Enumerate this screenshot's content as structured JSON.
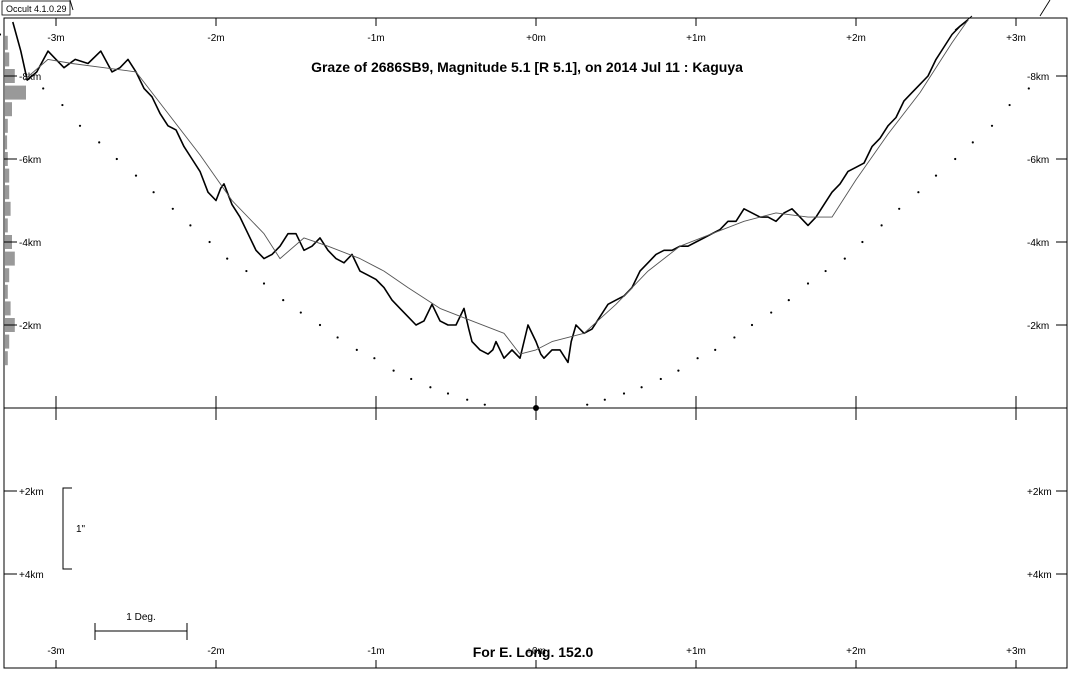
{
  "chart_data": {
    "type": "line",
    "title": "Graze of  2686SB9,  Magnitude 5.1 [R 5.1],  on 2014 Jul 11  :  Kaguya",
    "footer": "For E. Long. 152.0",
    "version_label": "Occult 4.1.0.29",
    "scale_bar_arcsec": "1\"",
    "scale_bar_deg": "1 Deg.",
    "x_ticks": [
      "-3m",
      "-2m",
      "-1m",
      "+0m",
      "+1m",
      "+2m",
      "+3m"
    ],
    "x_tick_values": [
      -3,
      -2,
      -1,
      0,
      1,
      2,
      3
    ],
    "y_ticks_left": [
      "-8km",
      "-6km",
      "-4km",
      "-2km",
      "+2km",
      "+4km"
    ],
    "y_ticks_right": [
      "-8km",
      "-6km",
      "-4km",
      "-2km",
      "+2km",
      "+4km"
    ],
    "y_tick_values": [
      -8,
      -6,
      -4,
      -2,
      2,
      4
    ],
    "x_unit": "minutes from central time",
    "y_unit": "km",
    "xlim": [
      -3.3,
      3.3
    ],
    "ylim": [
      -9.4,
      6.3
    ],
    "grid": false,
    "series": [
      {
        "role": "limb-profile-kaguya",
        "x": [
          -3.27,
          -3.22,
          -3.18,
          -3.12,
          -3.05,
          -3.0,
          -2.95,
          -2.88,
          -2.8,
          -2.72,
          -2.65,
          -2.6,
          -2.55,
          -2.5,
          -2.45,
          -2.4,
          -2.35,
          -2.3,
          -2.25,
          -2.2,
          -2.15,
          -2.1,
          -2.05,
          -2.0,
          -1.97,
          -1.95,
          -1.9,
          -1.85,
          -1.8,
          -1.75,
          -1.7,
          -1.65,
          -1.6,
          -1.55,
          -1.5,
          -1.45,
          -1.4,
          -1.35,
          -1.3,
          -1.25,
          -1.2,
          -1.15,
          -1.1,
          -1.05,
          -1.0,
          -0.95,
          -0.9,
          -0.85,
          -0.8,
          -0.75,
          -0.7,
          -0.65,
          -0.6,
          -0.55,
          -0.5,
          -0.45,
          -0.42,
          -0.4,
          -0.35,
          -0.3,
          -0.27,
          -0.25,
          -0.2,
          -0.15,
          -0.1,
          -0.05,
          0.0,
          0.03,
          0.05,
          0.1,
          0.15,
          0.2,
          0.22,
          0.25,
          0.3,
          0.35,
          0.4,
          0.45,
          0.5,
          0.55,
          0.6,
          0.65,
          0.7,
          0.75,
          0.8,
          0.85,
          0.9,
          0.95,
          1.0,
          1.05,
          1.1,
          1.15,
          1.2,
          1.25,
          1.3,
          1.35,
          1.4,
          1.45,
          1.5,
          1.55,
          1.6,
          1.65,
          1.7,
          1.75,
          1.8,
          1.85,
          1.9,
          1.95,
          2.0,
          2.05,
          2.1,
          2.15,
          2.2,
          2.25,
          2.3,
          2.35,
          2.4,
          2.45,
          2.5,
          2.55,
          2.6,
          2.65,
          2.7
        ],
        "y": [
          -9.3,
          -8.6,
          -7.9,
          -8.1,
          -8.6,
          -8.4,
          -8.2,
          -8.4,
          -8.3,
          -8.6,
          -8.1,
          -8.2,
          -8.4,
          -8.1,
          -7.7,
          -7.5,
          -7.1,
          -6.8,
          -6.7,
          -6.3,
          -6.0,
          -5.7,
          -5.2,
          -5.0,
          -5.3,
          -5.4,
          -4.9,
          -4.6,
          -4.2,
          -3.8,
          -3.6,
          -3.7,
          -3.9,
          -4.2,
          -4.2,
          -3.8,
          -3.9,
          -4.1,
          -3.8,
          -3.6,
          -3.5,
          -3.7,
          -3.3,
          -3.2,
          -3.1,
          -2.9,
          -2.6,
          -2.4,
          -2.2,
          -2.0,
          -2.1,
          -2.5,
          -2.1,
          -2.0,
          -2.0,
          -2.4,
          -1.9,
          -1.6,
          -1.4,
          -1.3,
          -1.4,
          -1.6,
          -1.2,
          -1.4,
          -1.2,
          -2.0,
          -1.6,
          -1.3,
          -1.2,
          -1.4,
          -1.4,
          -1.1,
          -1.6,
          -2.0,
          -1.8,
          -1.9,
          -2.2,
          -2.5,
          -2.6,
          -2.7,
          -2.9,
          -3.3,
          -3.5,
          -3.7,
          -3.8,
          -3.8,
          -3.9,
          -3.9,
          -4.0,
          -4.1,
          -4.2,
          -4.3,
          -4.5,
          -4.5,
          -4.8,
          -4.7,
          -4.6,
          -4.6,
          -4.5,
          -4.7,
          -4.8,
          -4.6,
          -4.4,
          -4.6,
          -4.9,
          -5.2,
          -5.4,
          -5.7,
          -5.8,
          -5.9,
          -6.3,
          -6.5,
          -6.8,
          -7.0,
          -7.4,
          -7.6,
          -7.8,
          -8.0,
          -8.4,
          -8.7,
          -9.0,
          -9.2,
          -9.35
        ],
        "color": "#000000"
      },
      {
        "role": "smoothed-profile",
        "x": [
          -3.2,
          -3.05,
          -2.9,
          -2.7,
          -2.5,
          -2.3,
          -2.1,
          -1.9,
          -1.7,
          -1.6,
          -1.45,
          -1.3,
          -1.1,
          -0.95,
          -0.8,
          -0.6,
          -0.4,
          -0.2,
          -0.1,
          0.0,
          0.1,
          0.3,
          0.5,
          0.7,
          0.9,
          1.1,
          1.3,
          1.5,
          1.7,
          1.85,
          2.0,
          2.2,
          2.4,
          2.6,
          2.7
        ],
        "y": [
          -7.9,
          -8.4,
          -8.3,
          -8.2,
          -8.1,
          -7.1,
          -6.1,
          -5.0,
          -4.2,
          -3.6,
          -4.1,
          -3.9,
          -3.6,
          -3.3,
          -2.9,
          -2.4,
          -2.1,
          -1.8,
          -1.3,
          -1.4,
          -1.6,
          -1.8,
          -2.5,
          -3.3,
          -3.9,
          -4.2,
          -4.5,
          -4.7,
          -4.6,
          -4.6,
          -5.5,
          -6.6,
          -7.6,
          -8.8,
          -9.35
        ],
        "color": "#555555"
      },
      {
        "role": "mean-limb-dotted",
        "x": [
          -3.35,
          -3.08,
          -2.96,
          -2.85,
          -2.73,
          -2.62,
          -2.5,
          -2.39,
          -2.27,
          -2.16,
          -2.04,
          -1.93,
          -1.81,
          -1.7,
          -1.58,
          -1.47,
          -1.35,
          -1.24,
          -1.12,
          -1.01,
          -0.89,
          -0.78,
          -0.66,
          -0.55,
          -0.43,
          -0.32,
          0.32,
          0.43,
          0.55,
          0.66,
          0.78,
          0.89,
          1.01,
          1.12,
          1.24,
          1.35,
          1.47,
          1.58,
          1.7,
          1.81,
          1.93,
          2.04,
          2.16,
          2.27,
          2.39,
          2.5,
          2.62,
          2.73,
          2.85,
          2.96,
          3.08
        ],
        "y": [
          -9.0,
          -7.7,
          -7.3,
          -6.8,
          -6.4,
          -6.0,
          -5.6,
          -5.2,
          -4.8,
          -4.4,
          -4.0,
          -3.6,
          -3.3,
          -3.0,
          -2.6,
          -2.3,
          -2.0,
          -1.7,
          -1.4,
          -1.2,
          -0.9,
          -0.7,
          -0.5,
          -0.35,
          -0.2,
          -0.08,
          -0.08,
          -0.2,
          -0.35,
          -0.5,
          -0.7,
          -0.9,
          -1.2,
          -1.4,
          -1.7,
          -2.0,
          -2.3,
          -2.6,
          -3.0,
          -3.3,
          -3.6,
          -4.0,
          -4.4,
          -4.8,
          -5.2,
          -5.6,
          -6.0,
          -6.4,
          -6.8,
          -7.3,
          -7.7
        ],
        "color": "#000000"
      }
    ],
    "side_histogram": {
      "role": "left-edge-density-bars",
      "y": [
        -8.8,
        -8.4,
        -8.0,
        -7.6,
        -7.2,
        -6.8,
        -6.4,
        -6.0,
        -5.6,
        -5.2,
        -4.8,
        -4.4,
        -4.0,
        -3.6,
        -3.2,
        -2.8,
        -2.4,
        -2.0,
        -1.6,
        -1.2
      ],
      "values": [
        4,
        6,
        14,
        30,
        10,
        4,
        3,
        4,
        6,
        6,
        8,
        4,
        10,
        14,
        6,
        4,
        8,
        14,
        6,
        4
      ],
      "color": "#999999"
    }
  }
}
